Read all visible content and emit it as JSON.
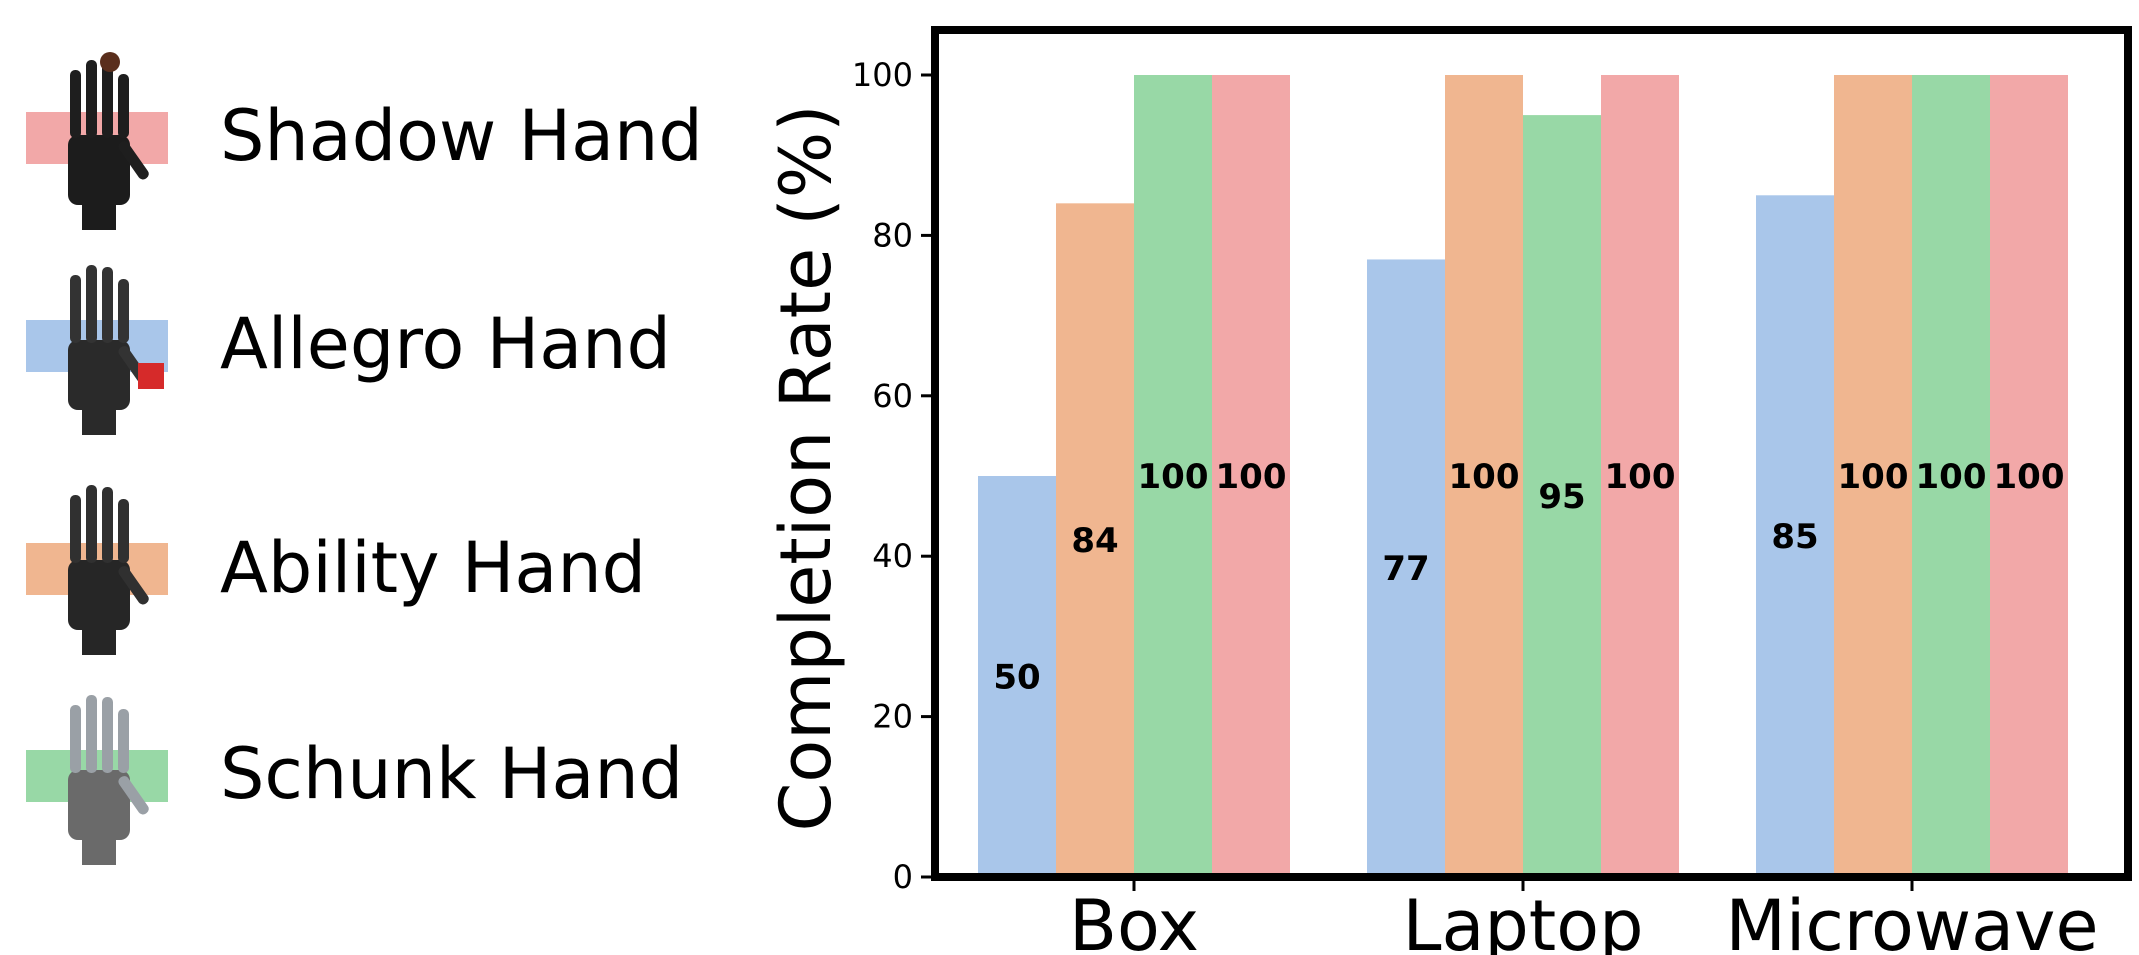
{
  "legend": {
    "items": [
      {
        "label": "Shadow Hand",
        "color": "#f2a8a8",
        "icon": "shadow-hand-icon"
      },
      {
        "label": "Allegro Hand",
        "color": "#a9c6ea",
        "icon": "allegro-hand-icon"
      },
      {
        "label": "Ability Hand",
        "color": "#f0b690",
        "icon": "ability-hand-icon"
      },
      {
        "label": "Schunk Hand",
        "color": "#98d8a6",
        "icon": "schunk-hand-icon"
      }
    ]
  },
  "chart_data": {
    "type": "bar",
    "categories": [
      "Box",
      "Laptop",
      "Microwave"
    ],
    "series": [
      {
        "name": "Allegro Hand",
        "color": "#a9c6ea",
        "values": [
          50,
          77,
          85
        ]
      },
      {
        "name": "Ability Hand",
        "color": "#f0b690",
        "values": [
          84,
          100,
          100
        ]
      },
      {
        "name": "Schunk Hand",
        "color": "#98d8a6",
        "values": [
          100,
          95,
          100
        ]
      },
      {
        "name": "Shadow Hand",
        "color": "#f2a8a8",
        "values": [
          100,
          100,
          100
        ]
      }
    ],
    "xlabel": "",
    "ylabel": "Completion Rate (%)",
    "ylim": [
      0,
      105
    ],
    "yticks": [
      0,
      20,
      40,
      60,
      80,
      100
    ],
    "grid": false,
    "legend": "left"
  }
}
